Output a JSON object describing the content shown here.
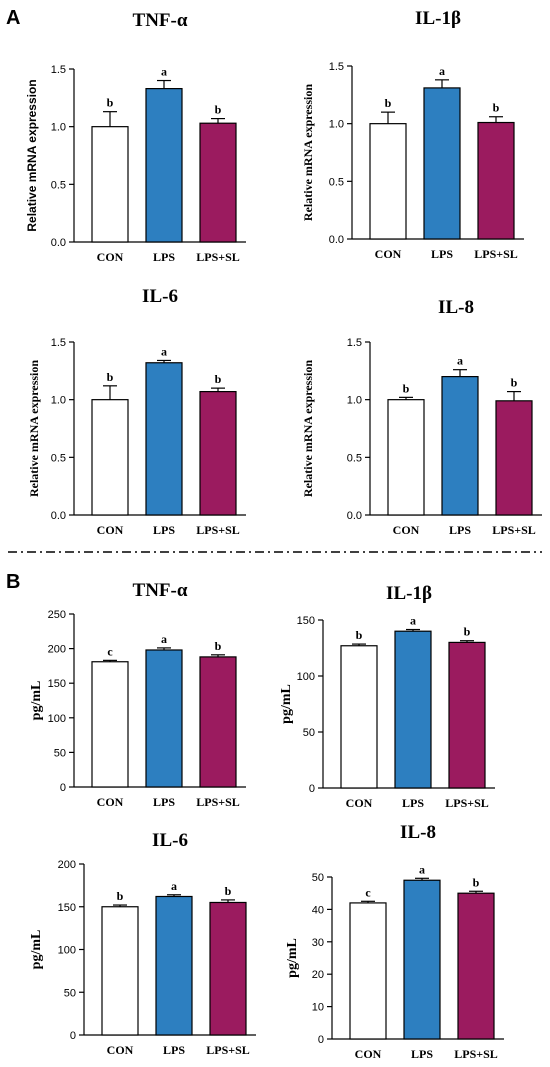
{
  "panels": [
    {
      "label": "A"
    },
    {
      "label": "B"
    }
  ],
  "colors": {
    "CON": "#ffffff",
    "LPS": "#2d7fc0",
    "LPS+SL": "#9b1b5f",
    "axis": "#000000"
  },
  "chart_data": [
    {
      "type": "bar",
      "panel": "A",
      "title": "TNF-α",
      "ylabel": "Relative mRNA expression",
      "xlabel": "",
      "categories": [
        "CON",
        "LPS",
        "LPS+SL"
      ],
      "values": [
        1.0,
        1.33,
        1.03
      ],
      "errors": [
        0.13,
        0.07,
        0.04
      ],
      "letters": [
        "b",
        "a",
        "b"
      ],
      "ylim": [
        0,
        1.5
      ],
      "yticks": [
        0.0,
        0.5,
        1.0,
        1.5
      ],
      "tick_decimals": 1
    },
    {
      "type": "bar",
      "panel": "A",
      "title": "IL-1β",
      "ylabel": "Relative mRNA expression",
      "xlabel": "",
      "categories": [
        "CON",
        "LPS",
        "LPS+SL"
      ],
      "values": [
        1.0,
        1.31,
        1.01
      ],
      "errors": [
        0.1,
        0.07,
        0.05
      ],
      "letters": [
        "b",
        "a",
        "b"
      ],
      "ylim": [
        0,
        1.5
      ],
      "yticks": [
        0.0,
        0.5,
        1.0,
        1.5
      ],
      "tick_decimals": 1
    },
    {
      "type": "bar",
      "panel": "A",
      "title": "IL-6",
      "ylabel": "Relative mRNA expression",
      "xlabel": "",
      "categories": [
        "CON",
        "LPS",
        "LPS+SL"
      ],
      "values": [
        1.0,
        1.32,
        1.07
      ],
      "errors": [
        0.12,
        0.02,
        0.03
      ],
      "letters": [
        "b",
        "a",
        "b"
      ],
      "ylim": [
        0,
        1.5
      ],
      "yticks": [
        0.0,
        0.5,
        1.0,
        1.5
      ],
      "tick_decimals": 1
    },
    {
      "type": "bar",
      "panel": "A",
      "title": "IL-8",
      "ylabel": "Relative mRNA expression",
      "xlabel": "",
      "categories": [
        "CON",
        "LPS",
        "LPS+SL"
      ],
      "values": [
        1.0,
        1.2,
        0.99
      ],
      "errors": [
        0.02,
        0.06,
        0.08
      ],
      "letters": [
        "b",
        "a",
        "b"
      ],
      "ylim": [
        0,
        1.5
      ],
      "yticks": [
        0.0,
        0.5,
        1.0,
        1.5
      ],
      "tick_decimals": 1
    },
    {
      "type": "bar",
      "panel": "B",
      "title": "TNF-α",
      "ylabel": "pg/mL",
      "xlabel": "",
      "categories": [
        "CON",
        "LPS",
        "LPS+SL"
      ],
      "values": [
        181,
        198,
        188
      ],
      "errors": [
        2,
        3,
        3
      ],
      "letters": [
        "c",
        "a",
        "b"
      ],
      "ylim": [
        0,
        250
      ],
      "yticks": [
        0,
        50,
        100,
        150,
        200,
        250
      ],
      "tick_decimals": 0
    },
    {
      "type": "bar",
      "panel": "B",
      "title": "IL-1β",
      "ylabel": "pg/mL",
      "xlabel": "",
      "categories": [
        "CON",
        "LPS",
        "LPS+SL"
      ],
      "values": [
        127,
        140,
        130
      ],
      "errors": [
        1.5,
        1.5,
        1.5
      ],
      "letters": [
        "b",
        "a",
        "b"
      ],
      "ylim": [
        0,
        150
      ],
      "yticks": [
        0,
        50,
        100,
        150
      ],
      "tick_decimals": 0
    },
    {
      "type": "bar",
      "panel": "B",
      "title": "IL-6",
      "ylabel": "pg/mL",
      "xlabel": "",
      "categories": [
        "CON",
        "LPS",
        "LPS+SL"
      ],
      "values": [
        150,
        162,
        155
      ],
      "errors": [
        2,
        2,
        3
      ],
      "letters": [
        "b",
        "a",
        "b"
      ],
      "ylim": [
        0,
        200
      ],
      "yticks": [
        0,
        50,
        100,
        150,
        200
      ],
      "tick_decimals": 0
    },
    {
      "type": "bar",
      "panel": "B",
      "title": "IL-8",
      "ylabel": "pg/mL",
      "xlabel": "",
      "categories": [
        "CON",
        "LPS",
        "LPS+SL"
      ],
      "values": [
        42,
        49,
        45
      ],
      "errors": [
        0.5,
        0.6,
        0.6
      ],
      "letters": [
        "c",
        "a",
        "b"
      ],
      "ylim": [
        0,
        50
      ],
      "yticks": [
        0,
        10,
        20,
        30,
        40,
        50
      ],
      "tick_decimals": 0
    }
  ]
}
